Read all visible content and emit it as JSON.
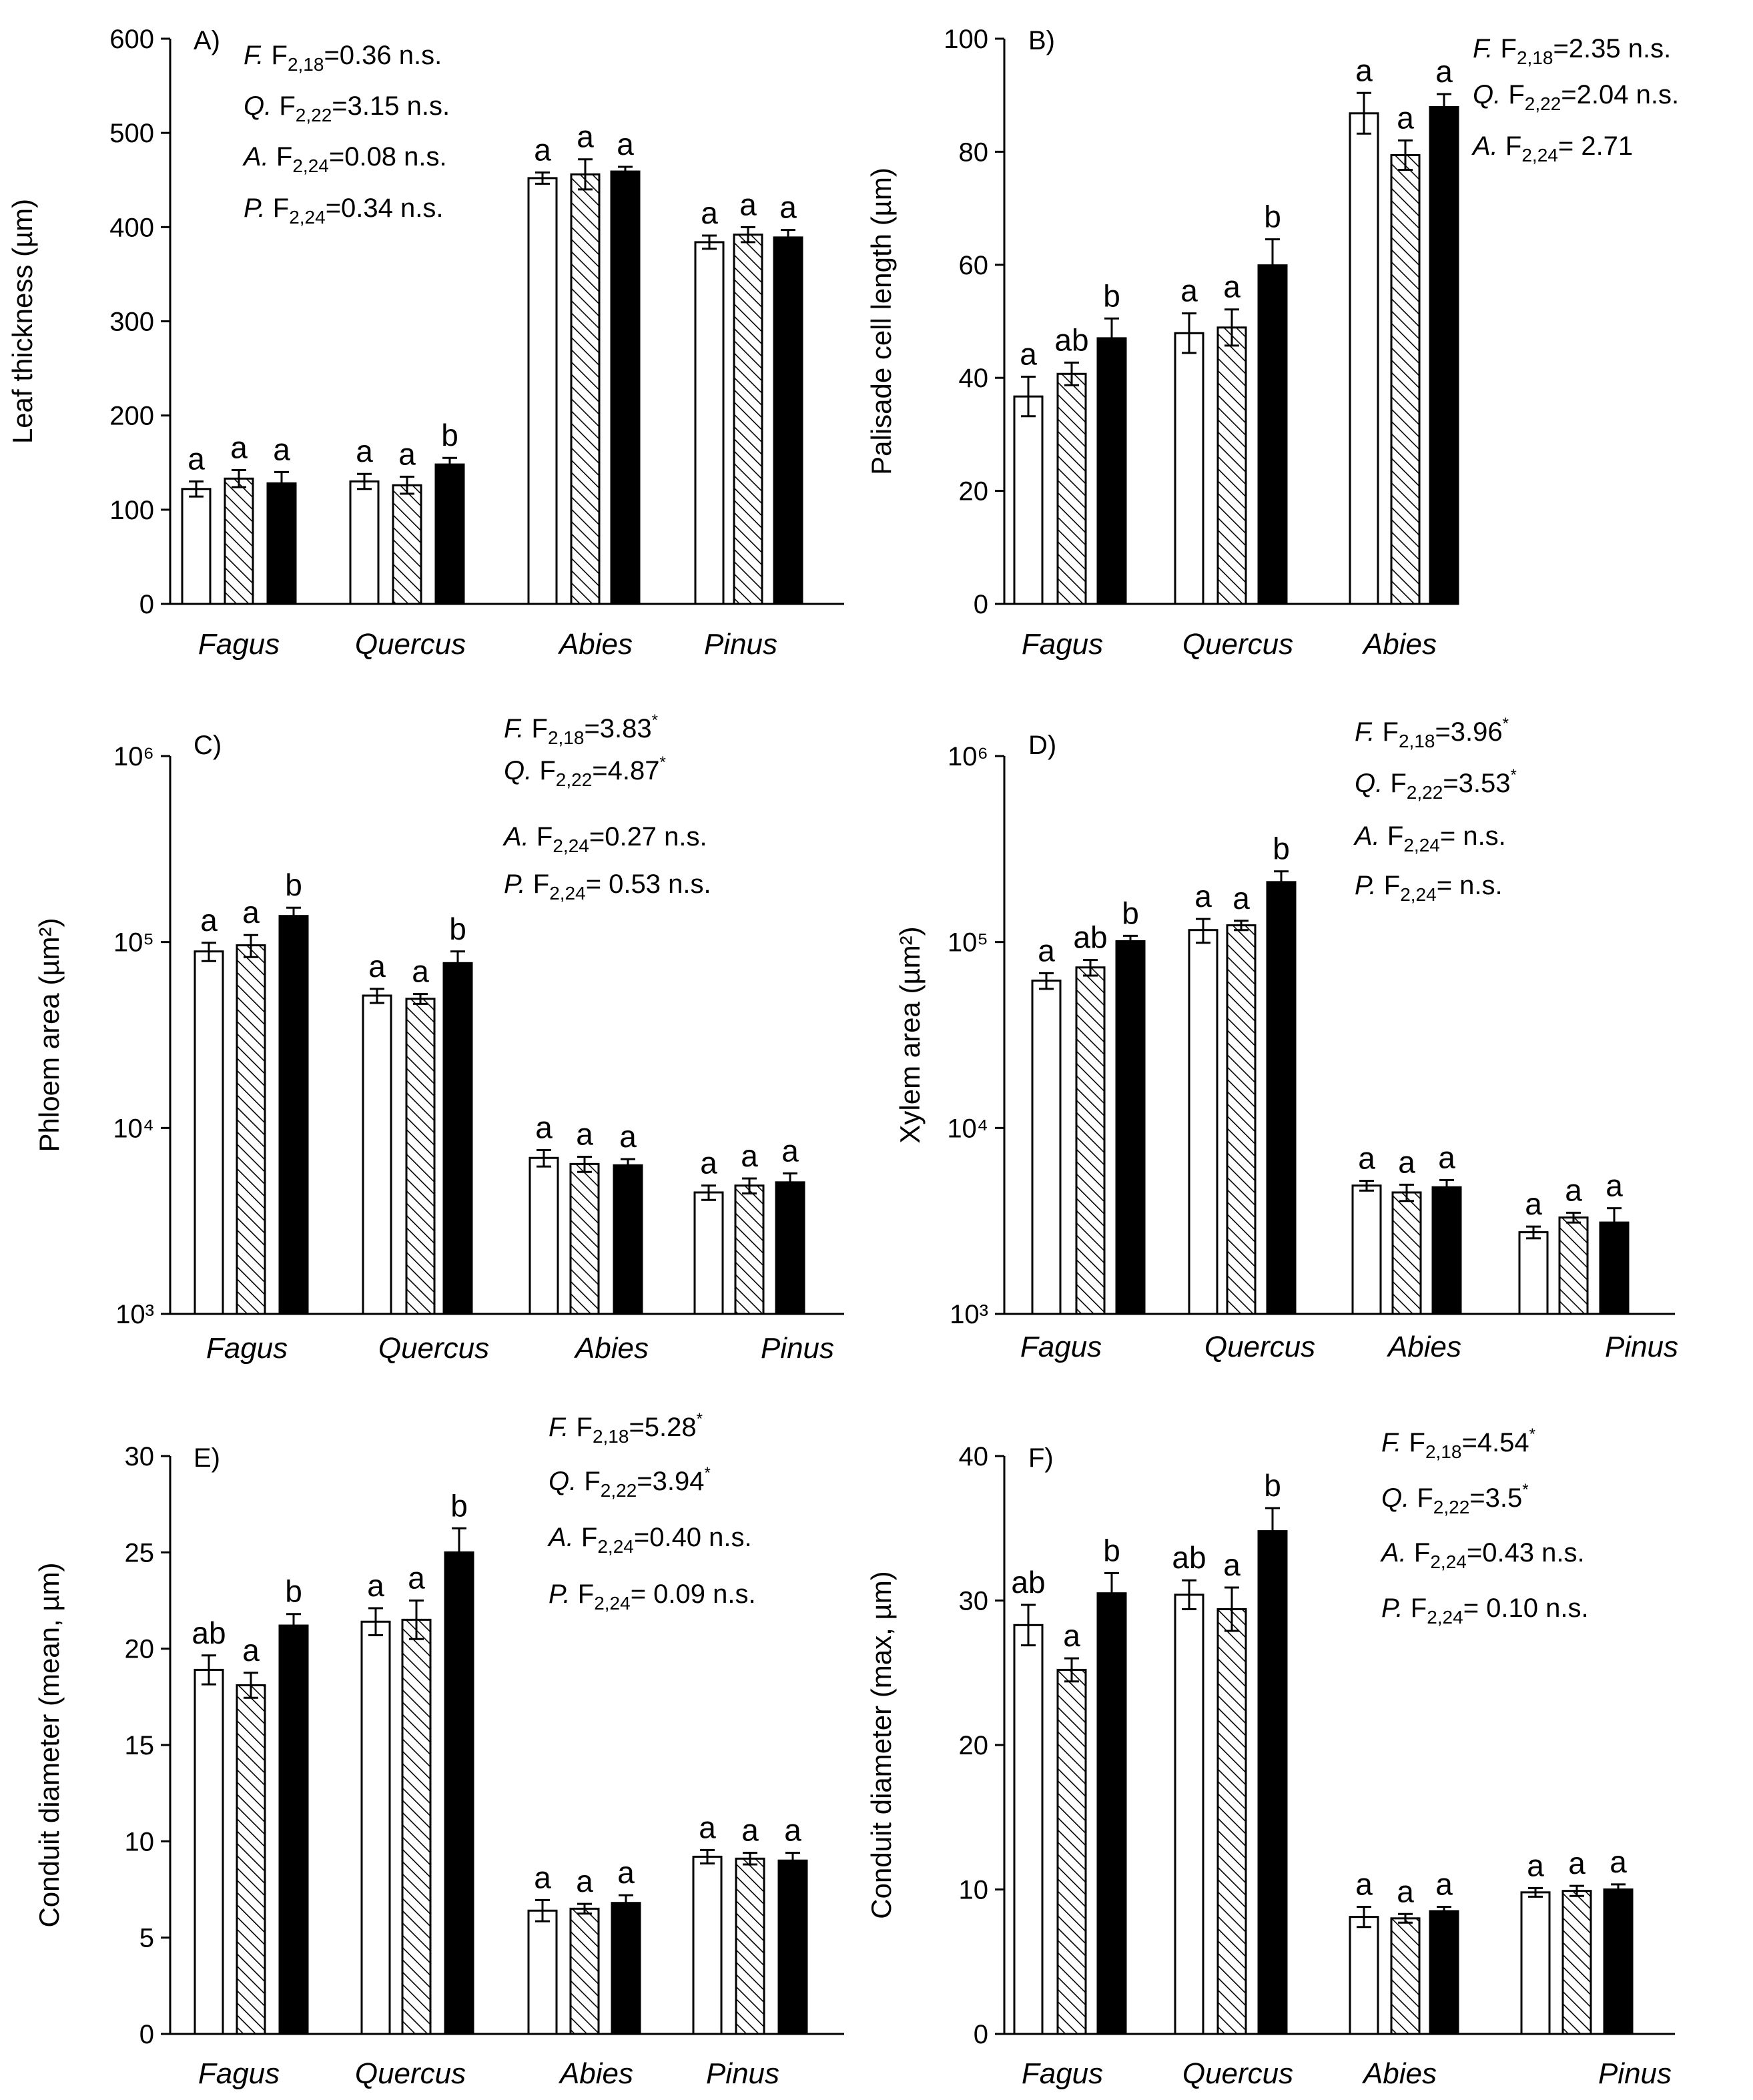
{
  "chart_data": [
    {
      "id": "A",
      "type": "bar",
      "panel_label": "A)",
      "ylabel": "Leaf thickness (µm)",
      "scale": "linear",
      "ylim": [
        0,
        600
      ],
      "yticks": [
        "0",
        "100",
        "200",
        "300",
        "400",
        "500",
        "600"
      ],
      "categories": [
        "Fagus",
        "Quercus",
        "Abies",
        "Pinus"
      ],
      "bars": [
        [
          {
            "v": 122,
            "e": 8,
            "l": "a"
          },
          {
            "v": 133,
            "e": 9,
            "l": "a"
          },
          {
            "v": 128,
            "e": 12,
            "l": "a"
          }
        ],
        [
          {
            "v": 130,
            "e": 8,
            "l": "a"
          },
          {
            "v": 126,
            "e": 9,
            "l": "a"
          },
          {
            "v": 148,
            "e": 7,
            "l": "b"
          }
        ],
        [
          {
            "v": 452,
            "e": 6,
            "l": "a"
          },
          {
            "v": 456,
            "e": 16,
            "l": "a"
          },
          {
            "v": 459,
            "e": 5,
            "l": "a"
          }
        ],
        [
          {
            "v": 384,
            "e": 7,
            "l": "a"
          },
          {
            "v": 392,
            "e": 8,
            "l": "a"
          },
          {
            "v": 389,
            "e": 8,
            "l": "a"
          }
        ]
      ],
      "stats": [
        {
          "sp": "F.",
          "df": "2,18",
          "val": "=0.36 n.s.",
          "sig": ""
        },
        {
          "sp": "Q.",
          "df": "2,22",
          "val": "=3.15 n.s.",
          "sig": ""
        },
        {
          "sp": "A.",
          "df": "2,24",
          "val": "=0.08 n.s.",
          "sig": ""
        },
        {
          "sp": "P.",
          "df": "2,24",
          "val": "=0.34 n.s.",
          "sig": ""
        }
      ]
    },
    {
      "id": "B",
      "type": "bar",
      "panel_label": "B)",
      "ylabel": "Palisade cell length (µm)",
      "scale": "linear",
      "ylim": [
        0,
        100
      ],
      "yticks": [
        "0",
        "20",
        "40",
        "60",
        "80",
        "100"
      ],
      "categories": [
        "Fagus",
        "Quercus",
        "Abies"
      ],
      "bars": [
        [
          {
            "v": 36.7,
            "e": 3.5,
            "l": "a"
          },
          {
            "v": 40.7,
            "e": 2.0,
            "l": "ab"
          },
          {
            "v": 47.0,
            "e": 3.5,
            "l": "b"
          }
        ],
        [
          {
            "v": 47.9,
            "e": 3.5,
            "l": "a"
          },
          {
            "v": 48.9,
            "e": 3.2,
            "l": "a"
          },
          {
            "v": 59.9,
            "e": 4.6,
            "l": "b"
          }
        ],
        [
          {
            "v": 86.8,
            "e": 3.6,
            "l": "a"
          },
          {
            "v": 79.4,
            "e": 2.6,
            "l": "a"
          },
          {
            "v": 87.9,
            "e": 2.3,
            "l": "a"
          }
        ]
      ],
      "stats": [
        {
          "sp": "F.",
          "df": "2,18",
          "val": "=2.35 n.s.",
          "sig": ""
        },
        {
          "sp": "Q.",
          "df": "2,22",
          "val": "=2.04 n.s.",
          "sig": ""
        },
        {
          "sp": "A.",
          "df": "2,24",
          "val": "= 2.71",
          "sig": ""
        }
      ]
    },
    {
      "id": "C",
      "type": "bar",
      "panel_label": "C)",
      "ylabel": "Phloem area (µm²)",
      "scale": "log",
      "ylim": [
        1000,
        1000000
      ],
      "yticks": [
        "10³",
        "10⁴",
        "10⁵",
        "10⁶"
      ],
      "categories": [
        "Fagus",
        "Quercus",
        "Abies",
        "Pinus"
      ],
      "bars": [
        [
          {
            "v": 89000,
            "e": 10000,
            "l": "a"
          },
          {
            "v": 96000,
            "e": 13000,
            "l": "a"
          },
          {
            "v": 138000,
            "e": 15000,
            "l": "b"
          }
        ],
        [
          {
            "v": 51500,
            "e": 4500,
            "l": "a"
          },
          {
            "v": 49500,
            "e": 3000,
            "l": "a"
          },
          {
            "v": 77000,
            "e": 12000,
            "l": "b"
          }
        ],
        [
          {
            "v": 6900,
            "e": 700,
            "l": "a"
          },
          {
            "v": 6400,
            "e": 600,
            "l": "a"
          },
          {
            "v": 6300,
            "e": 500,
            "l": "a"
          }
        ],
        [
          {
            "v": 4500,
            "e": 400,
            "l": "a"
          },
          {
            "v": 4900,
            "e": 450,
            "l": "a"
          },
          {
            "v": 5100,
            "e": 600,
            "l": "a"
          }
        ]
      ],
      "stats": [
        {
          "sp": "F.",
          "df": "2,18",
          "val": "=3.83",
          "sig": "*"
        },
        {
          "sp": "Q.",
          "df": "2,22",
          "val": "=4.87",
          "sig": "*"
        },
        {
          "sp": "A.",
          "df": "2,24",
          "val": "=0.27 n.s.",
          "sig": ""
        },
        {
          "sp": "P.",
          "df": "2,24",
          "val": "= 0.53 n.s.",
          "sig": ""
        }
      ]
    },
    {
      "id": "D",
      "type": "bar",
      "panel_label": "D)",
      "ylabel": "Xylem area (µm²)",
      "scale": "log",
      "ylim": [
        1000,
        1000000
      ],
      "yticks": [
        "10³",
        "10⁴",
        "10⁵",
        "10⁶"
      ],
      "categories": [
        "Fagus",
        "Quercus",
        "Abies",
        "Pinus"
      ],
      "bars": [
        [
          {
            "v": 62000,
            "e": 6000,
            "l": "a"
          },
          {
            "v": 73000,
            "e": 7000,
            "l": "ab"
          },
          {
            "v": 101000,
            "e": 7000,
            "l": "b"
          }
        ],
        [
          {
            "v": 116000,
            "e": 17000,
            "l": "a"
          },
          {
            "v": 123000,
            "e": 7000,
            "l": "a"
          },
          {
            "v": 210000,
            "e": 30000,
            "l": "b"
          }
        ],
        [
          {
            "v": 4900,
            "e": 300,
            "l": "a"
          },
          {
            "v": 4500,
            "e": 450,
            "l": "a"
          },
          {
            "v": 4800,
            "e": 450,
            "l": "a"
          }
        ],
        [
          {
            "v": 2750,
            "e": 200,
            "l": "a"
          },
          {
            "v": 3300,
            "e": 200,
            "l": "a"
          },
          {
            "v": 3100,
            "e": 600,
            "l": "a"
          }
        ]
      ],
      "stats": [
        {
          "sp": "F.",
          "df": "2,18",
          "val": "=3.96",
          "sig": "*"
        },
        {
          "sp": "Q.",
          "df": "2,22",
          "val": "=3.53",
          "sig": "*"
        },
        {
          "sp": "A.",
          "df": "2,24",
          "val": "= n.s.",
          "sig": ""
        },
        {
          "sp": "P.",
          "df": "2,24",
          "val": "=  n.s.",
          "sig": ""
        }
      ]
    },
    {
      "id": "E",
      "type": "bar",
      "panel_label": "E)",
      "ylabel": "Conduit diameter (mean, µm)",
      "scale": "linear",
      "ylim": [
        0,
        30
      ],
      "yticks": [
        "0",
        "5",
        "10",
        "15",
        "20",
        "25",
        "30"
      ],
      "categories": [
        "Fagus",
        "Quercus",
        "Abies",
        "Pinus"
      ],
      "bars": [
        [
          {
            "v": 18.9,
            "e": 0.75,
            "l": "ab"
          },
          {
            "v": 18.1,
            "e": 0.65,
            "l": "a"
          },
          {
            "v": 21.2,
            "e": 0.6,
            "l": "b"
          }
        ],
        [
          {
            "v": 21.4,
            "e": 0.7,
            "l": "a"
          },
          {
            "v": 21.5,
            "e": 1.0,
            "l": "a"
          },
          {
            "v": 25.0,
            "e": 1.25,
            "l": "b"
          }
        ],
        [
          {
            "v": 6.4,
            "e": 0.55,
            "l": "a"
          },
          {
            "v": 6.5,
            "e": 0.25,
            "l": "a"
          },
          {
            "v": 6.8,
            "e": 0.4,
            "l": "a"
          }
        ],
        [
          {
            "v": 9.2,
            "e": 0.35,
            "l": "a"
          },
          {
            "v": 9.1,
            "e": 0.3,
            "l": "a"
          },
          {
            "v": 9.0,
            "e": 0.4,
            "l": "a"
          }
        ]
      ],
      "stats": [
        {
          "sp": "F.",
          "df": "2,18",
          "val": "=5.28",
          "sig": "*"
        },
        {
          "sp": "Q.",
          "df": "2,22",
          "val": "=3.94",
          "sig": "*"
        },
        {
          "sp": "A.",
          "df": "2,24",
          "val": "=0.40 n.s.",
          "sig": ""
        },
        {
          "sp": "P.",
          "df": "2,24",
          "val": "= 0.09 n.s.",
          "sig": ""
        }
      ]
    },
    {
      "id": "F",
      "type": "bar",
      "panel_label": "F)",
      "ylabel": "Conduit diameter (max, µm)",
      "scale": "linear",
      "ylim": [
        0,
        40
      ],
      "yticks": [
        "0",
        "10",
        "20",
        "30",
        "40"
      ],
      "categories": [
        "Fagus",
        "Quercus",
        "Abies",
        "Pinus"
      ],
      "bars": [
        [
          {
            "v": 28.3,
            "e": 1.4,
            "l": "ab"
          },
          {
            "v": 25.2,
            "e": 0.8,
            "l": "a"
          },
          {
            "v": 30.5,
            "e": 1.4,
            "l": "b"
          }
        ],
        [
          {
            "v": 30.4,
            "e": 1.0,
            "l": "ab"
          },
          {
            "v": 29.4,
            "e": 1.5,
            "l": "a"
          },
          {
            "v": 34.8,
            "e": 1.6,
            "l": "b"
          }
        ],
        [
          {
            "v": 8.1,
            "e": 0.7,
            "l": "a"
          },
          {
            "v": 8.0,
            "e": 0.3,
            "l": "a"
          },
          {
            "v": 8.5,
            "e": 0.3,
            "l": "a"
          }
        ],
        [
          {
            "v": 9.8,
            "e": 0.3,
            "l": "a"
          },
          {
            "v": 9.9,
            "e": 0.35,
            "l": "a"
          },
          {
            "v": 10.0,
            "e": 0.35,
            "l": "a"
          }
        ]
      ],
      "stats": [
        {
          "sp": "F.",
          "df": "2,18",
          "val": "=4.54",
          "sig": "*"
        },
        {
          "sp": "Q.",
          "df": "2,22",
          "val": "=3.5",
          "sig": "*"
        },
        {
          "sp": "A.",
          "df": "2,24",
          "val": "=0.43 n.s.",
          "sig": ""
        },
        {
          "sp": "P.",
          "df": "2,24",
          "val": "= 0.10 n.s.",
          "sig": ""
        }
      ]
    }
  ]
}
